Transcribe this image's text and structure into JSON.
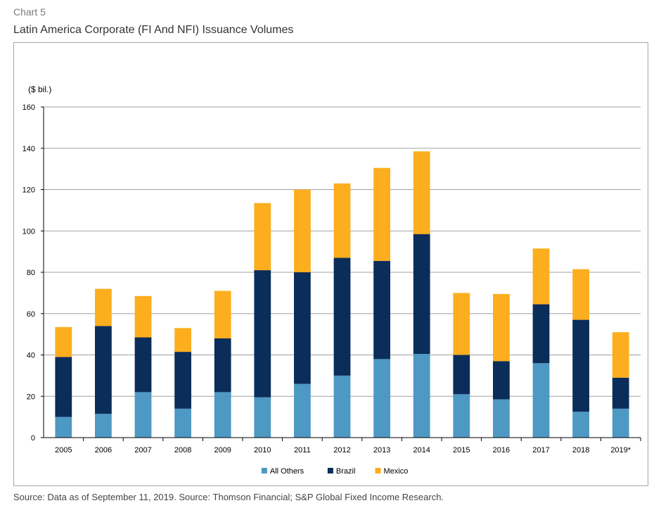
{
  "header": {
    "chart_label": "Chart 5",
    "title": "Latin America Corporate (FI And NFI) Issuance Volumes"
  },
  "footer": {
    "source": "Source: Data as of September 11, 2019. Source: Thomson Financial; S&P Global Fixed Income Research."
  },
  "colors": {
    "All Others": "#4e98c4",
    "Brazil": "#0a2d5a",
    "Mexico": "#fcae1e",
    "grid": "#a0a0a0",
    "axis": "#000000"
  },
  "chart_data": {
    "type": "bar",
    "stacked": true,
    "title": "Latin America Corporate (FI And NFI) Issuance Volumes",
    "ylabel": "($ bil.)",
    "xlabel": "",
    "ylim": [
      0,
      160
    ],
    "yticks": [
      0,
      20,
      40,
      60,
      80,
      100,
      120,
      140,
      160
    ],
    "grid": true,
    "legend_position": "bottom",
    "categories": [
      "2005",
      "2006",
      "2007",
      "2008",
      "2009",
      "2010",
      "2011",
      "2012",
      "2013",
      "2014",
      "2015",
      "2016",
      "2017",
      "2018",
      "2019*"
    ],
    "series": [
      {
        "name": "All Others",
        "values": [
          10,
          11.5,
          22,
          14,
          22,
          19.5,
          26,
          30,
          38,
          40.5,
          21,
          18.5,
          36,
          12.5,
          14
        ]
      },
      {
        "name": "Brazil",
        "values": [
          29,
          42.5,
          26.5,
          27.5,
          26,
          61.5,
          54,
          57,
          47.5,
          58,
          19,
          18.5,
          28.5,
          44.5,
          15
        ]
      },
      {
        "name": "Mexico",
        "values": [
          14.5,
          18,
          20,
          11.5,
          23,
          32.5,
          40,
          36,
          45,
          40,
          30,
          32.5,
          27,
          24.5,
          22
        ]
      }
    ]
  }
}
